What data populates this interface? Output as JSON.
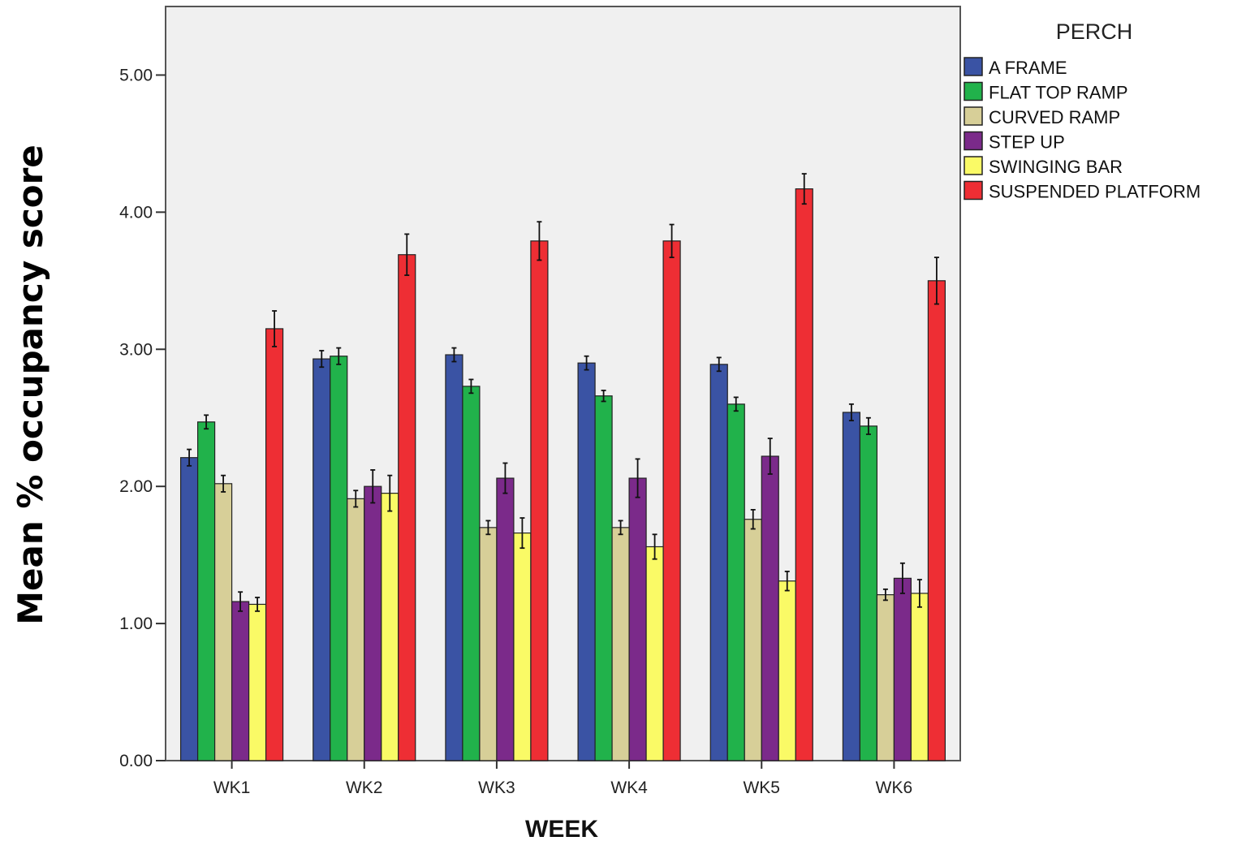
{
  "chart_data": {
    "type": "bar",
    "title": "",
    "xlabel": "WEEK",
    "ylabel": "Mean % occupancy score",
    "ylim": [
      0,
      5.5
    ],
    "yticks": [
      "0.00",
      "1.00",
      "2.00",
      "3.00",
      "4.00",
      "5.00"
    ],
    "categories": [
      "WK1",
      "WK2",
      "WK3",
      "WK4",
      "WK5",
      "WK6"
    ],
    "legend_title": "PERCH",
    "legend_position": "right",
    "grid": false,
    "series": [
      {
        "name": "A FRAME",
        "color": "#3a53a4",
        "values": [
          2.21,
          2.93,
          2.96,
          2.9,
          2.89,
          2.54
        ],
        "errors": [
          0.06,
          0.06,
          0.05,
          0.05,
          0.05,
          0.06
        ]
      },
      {
        "name": "FLAT TOP RAMP",
        "color": "#21b24b",
        "values": [
          2.47,
          2.95,
          2.73,
          2.66,
          2.6,
          2.44
        ],
        "errors": [
          0.05,
          0.06,
          0.05,
          0.04,
          0.05,
          0.06
        ]
      },
      {
        "name": "CURVED RAMP",
        "color": "#d7cf98",
        "values": [
          2.02,
          1.91,
          1.7,
          1.7,
          1.76,
          1.21
        ],
        "errors": [
          0.06,
          0.06,
          0.05,
          0.05,
          0.07,
          0.04
        ]
      },
      {
        "name": "STEP UP",
        "color": "#7b2a8a",
        "values": [
          1.16,
          2.0,
          2.06,
          2.06,
          2.22,
          1.33
        ],
        "errors": [
          0.07,
          0.12,
          0.11,
          0.14,
          0.13,
          0.11
        ]
      },
      {
        "name": "SWINGING BAR",
        "color": "#fafa66",
        "values": [
          1.14,
          1.95,
          1.66,
          1.56,
          1.31,
          1.22
        ],
        "errors": [
          0.05,
          0.13,
          0.11,
          0.09,
          0.07,
          0.1
        ]
      },
      {
        "name": "SUSPENDED PLATFORM",
        "color": "#ee2e34",
        "values": [
          3.15,
          3.69,
          3.79,
          3.79,
          4.17,
          3.5
        ],
        "errors": [
          0.13,
          0.15,
          0.14,
          0.12,
          0.11,
          0.17
        ]
      }
    ]
  }
}
